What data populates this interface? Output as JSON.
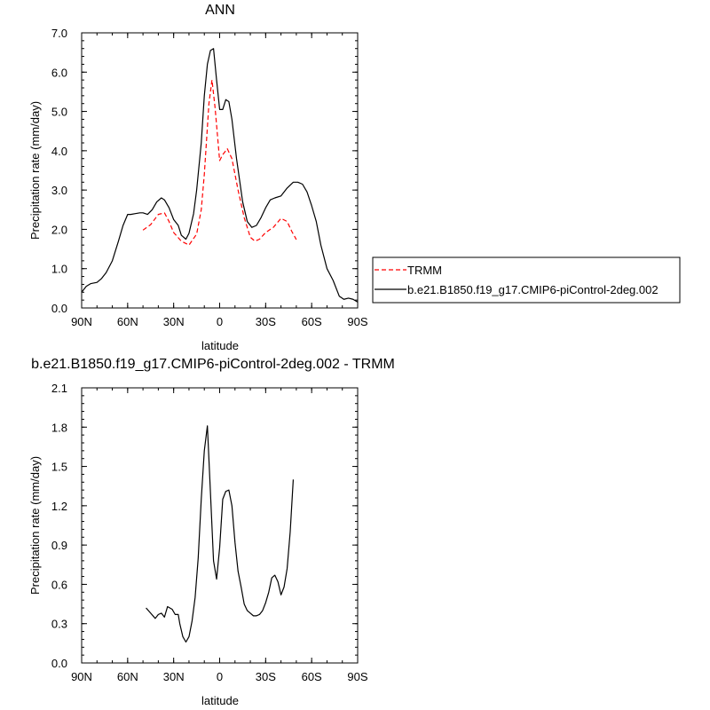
{
  "chart_data": [
    {
      "type": "line",
      "title": "ANN",
      "xlabel": "latitude",
      "ylabel": "Precipitation rate (mm/day)",
      "ylim": [
        0,
        7
      ],
      "xlim": [
        90,
        -90
      ],
      "xtick_values": [
        90,
        60,
        30,
        0,
        -30,
        -60,
        -90
      ],
      "xtick_labels": [
        "90N",
        "60N",
        "30N",
        "0",
        "30S",
        "60S",
        "90S"
      ],
      "ytick_values": [
        0,
        1,
        2,
        3,
        4,
        5,
        6,
        7
      ],
      "ytick_labels": [
        "0.0",
        "1.0",
        "2.0",
        "3.0",
        "4.0",
        "5.0",
        "6.0",
        "7.0"
      ],
      "legend": {
        "placement": "right"
      },
      "series": [
        {
          "name": "TRMM",
          "color": "#ff0000",
          "dash": "dashed",
          "x": [
            50,
            45,
            40,
            36,
            33,
            30,
            25,
            20,
            15,
            12,
            10,
            7,
            5,
            3,
            0,
            -2,
            -5,
            -8,
            -12,
            -16,
            -20,
            -23,
            -26,
            -30,
            -35,
            -40,
            -44,
            -47,
            -50
          ],
          "y": [
            1.98,
            2.12,
            2.38,
            2.42,
            2.2,
            1.92,
            1.7,
            1.6,
            1.88,
            2.5,
            3.4,
            5.2,
            5.8,
            5.1,
            3.75,
            3.9,
            4.05,
            3.8,
            3.0,
            2.3,
            1.8,
            1.7,
            1.75,
            1.92,
            2.05,
            2.28,
            2.2,
            1.95,
            1.74
          ]
        },
        {
          "name": "b.e21.B1850.f19_g17.CMIP6-piControl-2deg.002",
          "color": "#000000",
          "dash": "solid",
          "x": [
            90,
            87,
            84,
            80,
            77,
            74,
            70,
            66,
            63,
            60,
            58,
            55,
            52,
            50,
            47,
            44,
            41,
            38,
            36,
            33,
            30,
            27,
            25,
            22,
            20,
            17,
            15,
            12,
            10,
            8,
            6,
            4,
            2,
            0,
            -2,
            -4,
            -6,
            -8,
            -11,
            -15,
            -18,
            -21,
            -24,
            -27,
            -30,
            -33,
            -36,
            -40,
            -44,
            -48,
            -51,
            -54,
            -57,
            -60,
            -63,
            -66,
            -70,
            -74,
            -78,
            -81,
            -84,
            -87,
            -90
          ],
          "y": [
            0.4,
            0.55,
            0.62,
            0.65,
            0.75,
            0.9,
            1.2,
            1.7,
            2.1,
            2.38,
            2.38,
            2.4,
            2.42,
            2.42,
            2.38,
            2.5,
            2.7,
            2.8,
            2.75,
            2.55,
            2.25,
            2.1,
            1.85,
            1.75,
            1.9,
            2.4,
            3.0,
            4.2,
            5.4,
            6.2,
            6.55,
            6.6,
            5.8,
            5.05,
            5.05,
            5.3,
            5.25,
            4.8,
            3.8,
            2.7,
            2.2,
            2.05,
            2.1,
            2.3,
            2.55,
            2.75,
            2.8,
            2.85,
            3.05,
            3.2,
            3.2,
            3.15,
            2.95,
            2.6,
            2.2,
            1.6,
            1.0,
            0.7,
            0.3,
            0.22,
            0.25,
            0.22,
            0.15
          ]
        }
      ]
    },
    {
      "type": "line",
      "title": "b.e21.B1850.f19_g17.CMIP6-piControl-2deg.002 - TRMM",
      "xlabel": "latitude",
      "ylabel": "Precipitation rate (mm/day)",
      "ylim": [
        0,
        2.1
      ],
      "xlim": [
        90,
        -90
      ],
      "xtick_values": [
        90,
        60,
        30,
        0,
        -30,
        -60,
        -90
      ],
      "xtick_labels": [
        "90N",
        "60N",
        "30N",
        "0",
        "30S",
        "60S",
        "90S"
      ],
      "ytick_values": [
        0,
        0.3,
        0.6,
        0.9,
        1.2,
        1.5,
        1.8,
        2.1
      ],
      "ytick_labels": [
        "0.0",
        "0.3",
        "0.6",
        "0.9",
        "1.2",
        "1.5",
        "1.8",
        "2.1"
      ],
      "series": [
        {
          "color": "#000000",
          "dash": "solid",
          "x": [
            48,
            45,
            42,
            40,
            38,
            36,
            34,
            31,
            29,
            27,
            26,
            24,
            22,
            20,
            18,
            16,
            14,
            12,
            10,
            8,
            6,
            4,
            2,
            0,
            -2,
            -4,
            -6,
            -8,
            -10,
            -12,
            -14,
            -16,
            -18,
            -20,
            -22,
            -24,
            -26,
            -28,
            -30,
            -32,
            -34,
            -36,
            -38,
            -40,
            -42,
            -44,
            -46,
            -48
          ],
          "y": [
            0.42,
            0.38,
            0.34,
            0.37,
            0.38,
            0.35,
            0.43,
            0.41,
            0.37,
            0.37,
            0.3,
            0.2,
            0.16,
            0.2,
            0.32,
            0.5,
            0.8,
            1.25,
            1.62,
            1.81,
            1.3,
            0.78,
            0.64,
            0.88,
            1.25,
            1.31,
            1.32,
            1.2,
            0.92,
            0.7,
            0.58,
            0.45,
            0.4,
            0.38,
            0.36,
            0.36,
            0.37,
            0.4,
            0.46,
            0.54,
            0.65,
            0.67,
            0.62,
            0.52,
            0.58,
            0.72,
            1.0,
            1.4
          ]
        }
      ]
    }
  ]
}
